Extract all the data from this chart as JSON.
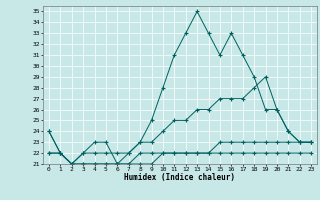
{
  "xlabel": "Humidex (Indice chaleur)",
  "ylabel": "",
  "xlim": [
    -0.5,
    23.5
  ],
  "ylim": [
    21,
    35.5
  ],
  "yticks": [
    21,
    22,
    23,
    24,
    25,
    26,
    27,
    28,
    29,
    30,
    31,
    32,
    33,
    34,
    35
  ],
  "xticks": [
    0,
    1,
    2,
    3,
    4,
    5,
    6,
    7,
    8,
    9,
    10,
    11,
    12,
    13,
    14,
    15,
    16,
    17,
    18,
    19,
    20,
    21,
    22,
    23
  ],
  "bg_color": "#c8e8e8",
  "grid_color": "#ffffff",
  "line_color": "#006060",
  "line1_x": [
    0,
    1,
    2,
    3,
    4,
    5,
    6,
    7,
    8,
    9,
    10,
    11,
    12,
    13,
    14,
    15,
    16,
    17,
    18,
    19,
    20,
    21,
    22,
    23
  ],
  "line1_y": [
    24,
    22,
    21,
    22,
    23,
    23,
    21,
    22,
    23,
    25,
    28,
    31,
    33,
    35,
    33,
    31,
    33,
    31,
    29,
    26,
    26,
    24,
    23,
    23
  ],
  "line2_x": [
    0,
    1,
    2,
    3,
    4,
    5,
    6,
    7,
    8,
    9,
    10,
    11,
    12,
    13,
    14,
    15,
    16,
    17,
    18,
    19,
    20,
    21,
    22,
    23
  ],
  "line2_y": [
    24,
    22,
    21,
    22,
    22,
    22,
    22,
    22,
    23,
    23,
    24,
    25,
    25,
    26,
    26,
    27,
    27,
    27,
    28,
    29,
    26,
    24,
    23,
    23
  ],
  "line3_x": [
    0,
    1,
    2,
    3,
    4,
    5,
    6,
    7,
    8,
    9,
    10,
    11,
    12,
    13,
    14,
    15,
    16,
    17,
    18,
    19,
    20,
    21,
    22,
    23
  ],
  "line3_y": [
    22,
    22,
    21,
    21,
    21,
    21,
    21,
    21,
    22,
    22,
    22,
    22,
    22,
    22,
    22,
    23,
    23,
    23,
    23,
    23,
    23,
    23,
    23,
    23
  ],
  "line4_x": [
    0,
    1,
    2,
    3,
    4,
    5,
    6,
    7,
    8,
    9,
    10,
    11,
    12,
    13,
    14,
    15,
    16,
    17,
    18,
    19,
    20,
    21,
    22,
    23
  ],
  "line4_y": [
    22,
    22,
    21,
    21,
    21,
    21,
    21,
    21,
    21,
    21,
    22,
    22,
    22,
    22,
    22,
    22,
    22,
    22,
    22,
    22,
    22,
    22,
    22,
    22
  ]
}
